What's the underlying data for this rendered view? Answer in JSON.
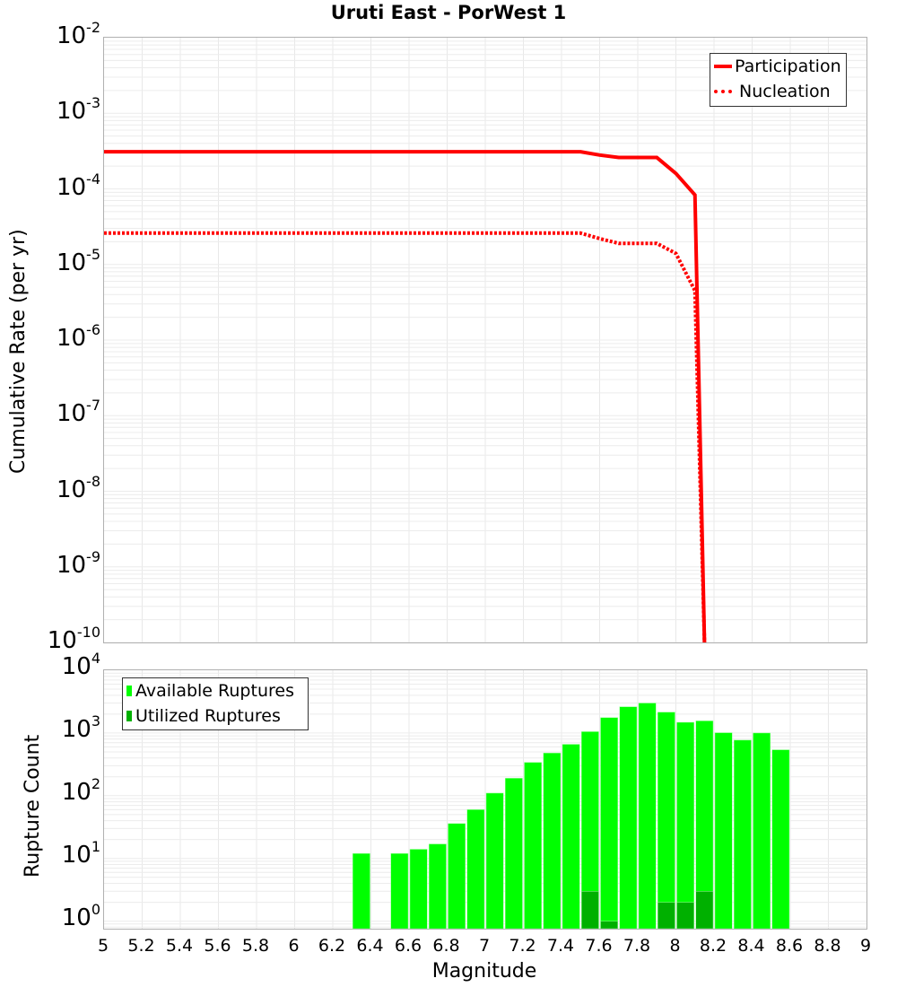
{
  "title": "Uruti East - PorWest 1",
  "top_chart": {
    "ylabel": "Cumulative Rate (per yr)",
    "yticks": [
      {
        "base": "10",
        "exp": "-2"
      },
      {
        "base": "10",
        "exp": "-3"
      },
      {
        "base": "10",
        "exp": "-4"
      },
      {
        "base": "10",
        "exp": "-5"
      },
      {
        "base": "10",
        "exp": "-6"
      },
      {
        "base": "10",
        "exp": "-7"
      },
      {
        "base": "10",
        "exp": "-8"
      },
      {
        "base": "10",
        "exp": "-9"
      },
      {
        "base": "10",
        "exp": "-10"
      }
    ],
    "legend": [
      {
        "label": "Participation",
        "style": "solid",
        "color": "#ff0000"
      },
      {
        "label": "Nucleation",
        "style": "dotted",
        "color": "#ff0000"
      }
    ]
  },
  "bottom_chart": {
    "ylabel": "Rupture Count",
    "xlabel": "Magnitude",
    "yticks": [
      {
        "base": "10",
        "exp": "4"
      },
      {
        "base": "10",
        "exp": "3"
      },
      {
        "base": "10",
        "exp": "2"
      },
      {
        "base": "10",
        "exp": "1"
      },
      {
        "base": "10",
        "exp": "0"
      }
    ],
    "xticks": [
      "5",
      "5.2",
      "5.4",
      "5.6",
      "5.8",
      "6",
      "6.2",
      "6.4",
      "6.6",
      "6.8",
      "7",
      "7.2",
      "7.4",
      "7.6",
      "7.8",
      "8",
      "8.2",
      "8.4",
      "8.6",
      "8.8",
      "9"
    ],
    "legend": [
      {
        "label": "Available Ruptures",
        "color": "#00ff00"
      },
      {
        "label": "Utilized Ruptures",
        "color": "#00b000"
      }
    ]
  },
  "chart_data": [
    {
      "type": "line",
      "title": "Uruti East - PorWest 1",
      "xlabel": "Magnitude",
      "ylabel": "Cumulative Rate (per yr)",
      "yscale": "log",
      "xlim": [
        5,
        9
      ],
      "ylim": [
        1e-10,
        0.01
      ],
      "grid": true,
      "legend_position": "upper right",
      "series": [
        {
          "name": "Participation",
          "color": "#ff0000",
          "style": "solid",
          "x": [
            5.0,
            7.5,
            7.6,
            7.7,
            7.9,
            8.0,
            8.1,
            8.15
          ],
          "y": [
            0.00031,
            0.00031,
            0.00028,
            0.00026,
            0.00026,
            0.00016,
            8.3e-05,
            1e-10
          ]
        },
        {
          "name": "Nucleation",
          "color": "#ff0000",
          "style": "dotted",
          "x": [
            5.0,
            7.5,
            7.6,
            7.7,
            7.9,
            8.0,
            8.1,
            8.15
          ],
          "y": [
            2.6e-05,
            2.6e-05,
            2.2e-05,
            1.9e-05,
            1.9e-05,
            1.4e-05,
            4.5e-06,
            1e-10
          ]
        }
      ]
    },
    {
      "type": "bar",
      "xlabel": "Magnitude",
      "ylabel": "Rupture Count",
      "yscale": "log",
      "xlim": [
        5,
        9
      ],
      "ylim": [
        0.8,
        10000
      ],
      "grid": true,
      "legend_position": "upper left",
      "categories": [
        "6.35",
        "6.55",
        "6.65",
        "6.75",
        "6.85",
        "6.95",
        "7.05",
        "7.15",
        "7.25",
        "7.35",
        "7.45",
        "7.55",
        "7.65",
        "7.75",
        "7.85",
        "7.95",
        "8.05",
        "8.15",
        "8.25",
        "8.35",
        "8.45",
        "8.55"
      ],
      "series": [
        {
          "name": "Available Ruptures",
          "color": "#00ff00",
          "values": [
            12,
            12,
            14,
            17,
            36,
            60,
            110,
            190,
            340,
            480,
            660,
            1050,
            1760,
            2620,
            3000,
            2150,
            1480,
            1560,
            1010,
            770,
            1000,
            540
          ]
        },
        {
          "name": "Utilized Ruptures",
          "color": "#00b000",
          "values": [
            0,
            0,
            0,
            0,
            0,
            0,
            0,
            0,
            0,
            0,
            0,
            3,
            1,
            0,
            0,
            2,
            2,
            3,
            0,
            0,
            0,
            0
          ]
        }
      ]
    }
  ]
}
